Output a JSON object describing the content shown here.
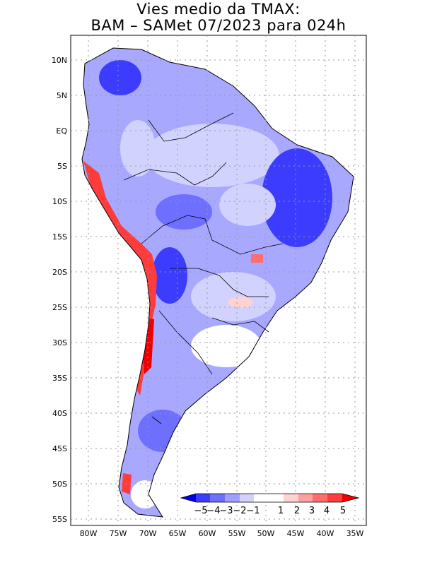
{
  "title": {
    "line1": "Vies medio da TMAX:",
    "line2": "BAM – SAMet 07/2023  para 024h"
  },
  "map": {
    "lon_range": [
      -84.5,
      -34
    ],
    "lat_range": [
      -56,
      13.5
    ],
    "lon_ticks": [
      "80W",
      "75W",
      "70W",
      "65W",
      "60W",
      "55W",
      "50W",
      "45W",
      "40W",
      "35W"
    ],
    "lat_ticks": [
      "10N",
      "5N",
      "EQ",
      "5S",
      "10S",
      "15S",
      "20S",
      "25S",
      "30S",
      "35S",
      "40S",
      "45S",
      "50S",
      "55S"
    ],
    "grid": "dotted"
  },
  "colorbar": {
    "labels": [
      "−5",
      "−4",
      "−3",
      "−2",
      "−1",
      "1",
      "2",
      "3",
      "4",
      "5"
    ],
    "colors": [
      "#0000f0",
      "#3c3cff",
      "#6e6eff",
      "#a0a0ff",
      "#d2d2ff",
      "#ffffff",
      "#ffd2d2",
      "#ffa0a0",
      "#ff6e6e",
      "#ff3c3c",
      "#f00000"
    ]
  }
}
